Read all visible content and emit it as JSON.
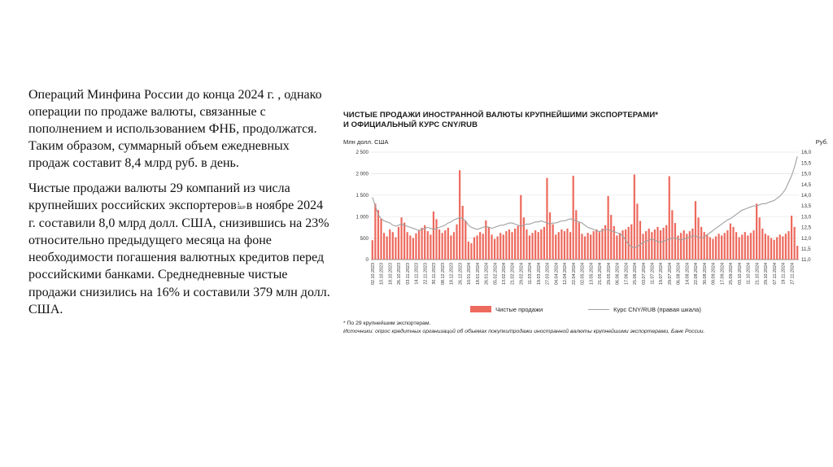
{
  "text": {
    "p1": "Операций Минфина России до конца 2024 г. , однако операции по продаже валюты, связанные с пополнением и использованием ФНБ, продолжатся. Таким образом, суммарный объем ежедневных продаж составит 8,4 млрд руб. в день.",
    "p2_before": "Чистые продажи валюты 29 компаний из числа крупнейших российских экспортеров",
    "marker_sup": "1",
    "marker_label": "SEP",
    "p2_after": "в ноябре 2024 г. составили 8,0 млрд долл. США, снизившись на 23% относительно предыдущего месяца на фоне необходимости погашения валютных кредитов перед российскими банками. Среднедневные чистые продажи снизились на 16% и составили 379 млн долл. США."
  },
  "chart_data": {
    "type": "bar",
    "title": [
      "ЧИСТЫЕ ПРОДАЖИ ИНОСТРАННОЙ ВАЛЮТЫ КРУПНЕЙШИМИ ЭКСПОРТЕРАМИ*",
      "И ОФИЦИАЛЬНЫЙ КУРС CNY/RUB"
    ],
    "legend_position": "bottom",
    "grid": true,
    "left_axis": {
      "label": "Млн долл. США",
      "min": 0,
      "max": 2500,
      "ticks": [
        "0",
        "500",
        "1 000",
        "1 500",
        "2 000",
        "2 500"
      ]
    },
    "right_axis": {
      "label": "Руб.",
      "min": 11.0,
      "max": 16.0,
      "ticks": [
        "11,0",
        "11,5",
        "12,0",
        "12,5",
        "13,0",
        "13,5",
        "14,0",
        "14,5",
        "15,0",
        "15,5",
        "16,0"
      ]
    },
    "bars_per_label": 3,
    "x_labels": [
      "02.10.2023",
      "10.10.2023",
      "18.10.2023",
      "26.10.2023",
      "03.11.2023",
      "14.11.2023",
      "22.11.2023",
      "30.11.2023",
      "08.12.2023",
      "18.12.2023",
      "26.12.2023",
      "10.01.2024",
      "18.01.2024",
      "26.01.2024",
      "05.02.2024",
      "13.02.2024",
      "21.02.2024",
      "29.02.2024",
      "11.03.2024",
      "19.03.2024",
      "27.03.2024",
      "04.04.2024",
      "12.04.2024",
      "22.04.2024",
      "02.05.2024",
      "13.05.2024",
      "21.05.2024",
      "29.05.2024",
      "06.06.2024",
      "17.06.2024",
      "25.06.2024",
      "03.07.2024",
      "11.07.2024",
      "19.07.2024",
      "29.07.2024",
      "06.08.2024",
      "14.08.2024",
      "22.08.2024",
      "30.08.2024",
      "09.09.2024",
      "17.09.2024",
      "25.09.2024",
      "03.10.2024",
      "11.10.2024",
      "21.10.2024",
      "29.10.2024",
      "07.11.2024",
      "19.11.2024",
      "27.11.2024"
    ],
    "series": [
      {
        "name": "Чистые продажи",
        "type": "bar",
        "axis": "left",
        "color": "#ed6a5e",
        "values": [
          450,
          1300,
          1150,
          950,
          620,
          540,
          700,
          640,
          520,
          760,
          980,
          860,
          640,
          560,
          500,
          610,
          690,
          740,
          800,
          660,
          580,
          1120,
          940,
          700,
          620,
          680,
          740,
          560,
          640,
          820,
          2080,
          1250,
          900,
          420,
          380,
          520,
          560,
          640,
          600,
          910,
          760,
          580,
          480,
          540,
          620,
          580,
          660,
          700,
          640,
          720,
          780,
          1500,
          980,
          700,
          560,
          620,
          680,
          640,
          700,
          760,
          1900,
          1100,
          820,
          580,
          640,
          700,
          660,
          720,
          640,
          1950,
          1150,
          860,
          600,
          540,
          620,
          580,
          660,
          700,
          640,
          720,
          800,
          1480,
          1040,
          780,
          560,
          620,
          680,
          700,
          760,
          820,
          1980,
          1300,
          900,
          600,
          660,
          720,
          640,
          700,
          760,
          680,
          740,
          800,
          1940,
          1150,
          850,
          560,
          620,
          680,
          600,
          660,
          720,
          1360,
          980,
          760,
          640,
          580,
          520,
          480,
          540,
          600,
          560,
          620,
          680,
          840,
          760,
          640,
          520,
          580,
          640,
          560,
          620,
          680,
          1300,
          980,
          720,
          600,
          560,
          500,
          460,
          520,
          580,
          540,
          600,
          660,
          1020,
          760,
          320
        ]
      },
      {
        "name": "Курс CNY/RUB (правая шкала)",
        "type": "line",
        "axis": "right",
        "color": "#a0a0a0",
        "values": [
          13.9,
          13.5,
          13.1,
          12.9,
          12.8,
          12.75,
          12.7,
          12.6,
          12.55,
          12.6,
          12.65,
          12.6,
          12.55,
          12.5,
          12.45,
          12.4,
          12.35,
          12.4,
          12.45,
          12.5,
          12.45,
          12.4,
          12.45,
          12.5,
          12.55,
          12.6,
          12.7,
          12.75,
          12.85,
          12.9,
          12.95,
          12.9,
          12.8,
          12.6,
          12.5,
          12.45,
          12.4,
          12.45,
          12.5,
          12.55,
          12.5,
          12.45,
          12.5,
          12.55,
          12.6,
          12.6,
          12.65,
          12.7,
          12.7,
          12.65,
          12.6,
          12.55,
          12.6,
          12.65,
          12.65,
          12.7,
          12.75,
          12.75,
          12.8,
          12.75,
          12.7,
          12.65,
          12.7,
          12.7,
          12.75,
          12.8,
          12.8,
          12.85,
          12.9,
          12.85,
          12.8,
          12.75,
          12.7,
          12.6,
          12.5,
          12.45,
          12.4,
          12.35,
          12.3,
          12.35,
          12.4,
          12.4,
          12.35,
          12.3,
          12.25,
          12.2,
          12.1,
          11.9,
          11.7,
          11.6,
          11.55,
          11.6,
          11.7,
          11.8,
          11.85,
          11.9,
          11.95,
          11.9,
          11.85,
          11.8,
          11.85,
          11.9,
          11.95,
          12.0,
          12.0,
          11.95,
          11.9,
          11.95,
          12.0,
          12.05,
          12.1,
          12.1,
          12.05,
          12.0,
          12.05,
          12.15,
          12.25,
          12.35,
          12.45,
          12.55,
          12.65,
          12.75,
          12.85,
          12.9,
          13.0,
          13.1,
          13.2,
          13.3,
          13.35,
          13.4,
          13.45,
          13.5,
          13.5,
          13.55,
          13.6,
          13.6,
          13.65,
          13.7,
          13.75,
          13.85,
          13.95,
          14.1,
          14.3,
          14.6,
          14.9,
          15.3,
          15.8
        ]
      }
    ],
    "footnotes": [
      "* По 29 крупнейшим экспортерам.",
      "Источники: опрос кредитных организаций об объемах покупки/продажи иностранной валюты крупнейшими экспортерами, Банк России."
    ]
  }
}
